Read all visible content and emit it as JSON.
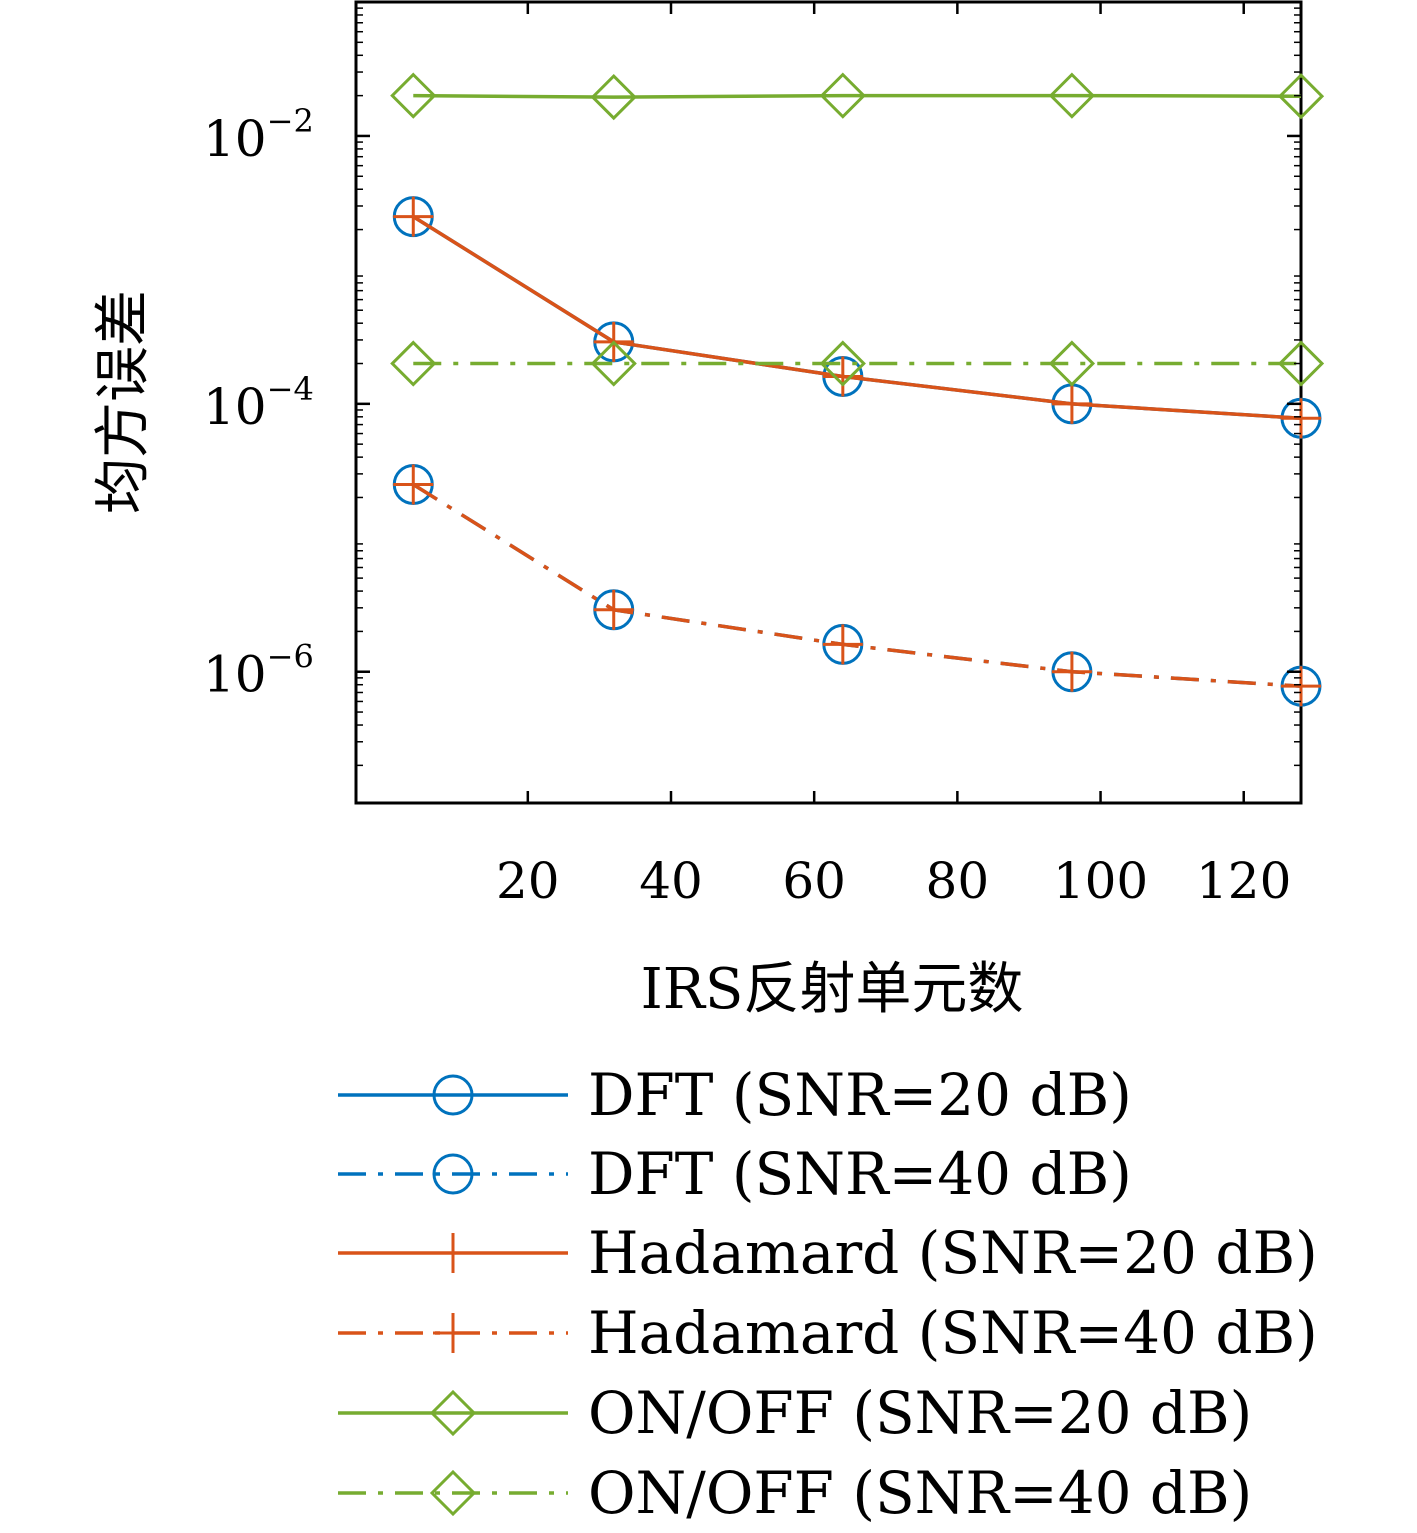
{
  "chart_data": {
    "type": "line",
    "xlabel": "IRS反射单元数",
    "ylabel": "均方误差",
    "xlim": [
      -4,
      128
    ],
    "ylim_log10": [
      -6.98,
      -1.0
    ],
    "y_scale": "log",
    "xticks": [
      20,
      40,
      60,
      80,
      100,
      120
    ],
    "yticks": [
      {
        "value": 0.01,
        "base": "10",
        "exp": "−2"
      },
      {
        "value": 0.0001,
        "base": "10",
        "exp": "−4"
      },
      {
        "value": 1e-06,
        "base": "10",
        "exp": "−6"
      }
    ],
    "x": [
      4,
      32,
      64,
      96,
      128
    ],
    "series": [
      {
        "name": "DFT (SNR=20 dB)",
        "color": "#0072BD",
        "dash": "solid",
        "marker": "circle",
        "values": [
          0.0025,
          0.00029,
          0.00016,
          0.0001,
          7.8e-05
        ]
      },
      {
        "name": "DFT (SNR=40 dB)",
        "color": "#0072BD",
        "dash": "dashdot",
        "marker": "circle",
        "values": [
          2.5e-05,
          2.9e-06,
          1.6e-06,
          1e-06,
          7.8e-07
        ]
      },
      {
        "name": "Hadamard (SNR=20 dB)",
        "color": "#D95319",
        "dash": "solid",
        "marker": "plus",
        "values": [
          0.0025,
          0.00029,
          0.00016,
          0.0001,
          7.8e-05
        ]
      },
      {
        "name": "Hadamard (SNR=40 dB)",
        "color": "#D95319",
        "dash": "dashdot",
        "marker": "plus",
        "values": [
          2.5e-05,
          2.9e-06,
          1.6e-06,
          1e-06,
          7.8e-07
        ]
      },
      {
        "name": "ON/OFF (SNR=20 dB)",
        "color": "#77AC30",
        "dash": "solid",
        "marker": "diamond",
        "values": [
          0.02,
          0.0195,
          0.02,
          0.02,
          0.0198
        ]
      },
      {
        "name": "ON/OFF (SNR=40 dB)",
        "color": "#77AC30",
        "dash": "dashdot",
        "marker": "diamond",
        "values": [
          0.0002,
          0.0002,
          0.0002,
          0.0002,
          0.0002
        ]
      }
    ],
    "legend_position": "below"
  }
}
